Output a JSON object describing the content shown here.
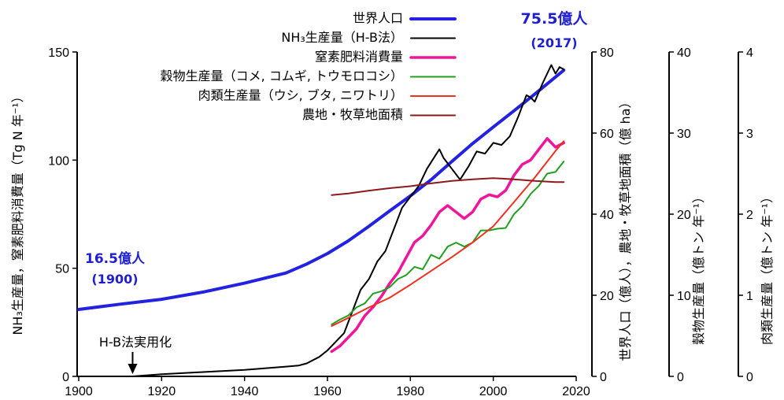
{
  "chart_data": {
    "type": "line",
    "xlabel": "",
    "x_ticks": [
      "1900",
      "1920",
      "1940",
      "1960",
      "1980",
      "2000",
      "2020"
    ],
    "xlim": [
      1900,
      2020
    ],
    "axes": [
      {
        "id": "left",
        "label": "NH₃生産量，窒素肥料消費量（Tg N 年⁻¹）",
        "range": [
          0,
          150
        ],
        "ticks": [
          "0",
          "50",
          "100",
          "150"
        ]
      },
      {
        "id": "r1",
        "label": "世界人口（億人），農地・牧草地面積（億 ha）",
        "range": [
          0,
          80
        ],
        "ticks": [
          "0",
          "20",
          "40",
          "60",
          "80"
        ]
      },
      {
        "id": "r2",
        "label": "穀物生産量（億トン 年⁻¹）",
        "range": [
          0,
          40
        ],
        "ticks": [
          "0",
          "10",
          "20",
          "30",
          "40"
        ]
      },
      {
        "id": "r3",
        "label": "肉類生産量（億トン 年⁻¹）",
        "range": [
          0,
          4
        ],
        "ticks": [
          "0",
          "1",
          "2",
          "3",
          "4"
        ]
      }
    ],
    "series": [
      {
        "name": "世界人口",
        "color": "#2222e0",
        "axis": "r1",
        "width": 4,
        "x": [
          1900,
          1910,
          1920,
          1930,
          1940,
          1950,
          1955,
          1960,
          1965,
          1970,
          1975,
          1980,
          1985,
          1990,
          1995,
          2000,
          2005,
          2010,
          2017
        ],
        "y": [
          16.5,
          17.8,
          19.0,
          20.8,
          23.0,
          25.5,
          27.7,
          30.3,
          33.4,
          37.0,
          40.8,
          44.5,
          48.5,
          53.0,
          57.4,
          61.5,
          65.5,
          69.6,
          75.5
        ]
      },
      {
        "name": "NH₃生産量（H-B法）",
        "color": "#000000",
        "axis": "left",
        "width": 2,
        "x": [
          1913,
          1920,
          1930,
          1940,
          1950,
          1953,
          1955,
          1958,
          1960,
          1962,
          1964,
          1966,
          1968,
          1970,
          1972,
          1974,
          1976,
          1978,
          1980,
          1982,
          1984,
          1986,
          1987,
          1988,
          1990,
          1992,
          1994,
          1996,
          1998,
          2000,
          2002,
          2004,
          2006,
          2008,
          2009,
          2010,
          2012,
          2014,
          2015,
          2016,
          2017
        ],
        "y": [
          0,
          1,
          2,
          3,
          4.5,
          5,
          6,
          9,
          12,
          16,
          20,
          30,
          40,
          45,
          53,
          58,
          68,
          78,
          83,
          88,
          96,
          102,
          105,
          101,
          96,
          91,
          97,
          104,
          103,
          108,
          107,
          111,
          120,
          130,
          129,
          127,
          136,
          144,
          140,
          143,
          142
        ]
      },
      {
        "name": "窒素肥料消費量",
        "color": "#f0169a",
        "axis": "left",
        "width": 3.5,
        "x": [
          1961,
          1963,
          1965,
          1967,
          1969,
          1971,
          1973,
          1975,
          1977,
          1979,
          1981,
          1983,
          1985,
          1987,
          1989,
          1991,
          1993,
          1995,
          1997,
          1999,
          2001,
          2003,
          2005,
          2007,
          2009,
          2011,
          2013,
          2015,
          2017
        ],
        "y": [
          11.5,
          14,
          18,
          22,
          28,
          32,
          37,
          43,
          48,
          55,
          62,
          65,
          70,
          76,
          79,
          76,
          73,
          76,
          82,
          84,
          83,
          86,
          93,
          98,
          100,
          105,
          110,
          106,
          108
        ]
      },
      {
        "name": "穀物生産量（コメ, コムギ, トウモロコシ）",
        "color": "#20a020",
        "axis": "r2",
        "width": 2,
        "x": [
          1961,
          1963,
          1965,
          1967,
          1969,
          1971,
          1973,
          1975,
          1977,
          1979,
          1981,
          1983,
          1985,
          1987,
          1989,
          1991,
          1993,
          1995,
          1997,
          1999,
          2001,
          2003,
          2005,
          2007,
          2009,
          2011,
          2013,
          2015,
          2017
        ],
        "y": [
          6.4,
          7.0,
          7.5,
          8.5,
          9.0,
          10.2,
          10.5,
          11.0,
          12.0,
          12.5,
          13.5,
          13.2,
          15.0,
          14.5,
          16.0,
          16.5,
          16.0,
          16.5,
          18.0,
          18.0,
          18.2,
          18.3,
          20.0,
          21.0,
          22.5,
          23.5,
          25.0,
          25.2,
          26.5
        ]
      },
      {
        "name": "肉類生産量（ウシ, ブタ, ニワトリ）",
        "color": "#f03020",
        "axis": "r3",
        "width": 2,
        "x": [
          1961,
          1965,
          1970,
          1975,
          1980,
          1985,
          1990,
          1995,
          2000,
          2005,
          2010,
          2015,
          2017
        ],
        "y": [
          0.62,
          0.72,
          0.85,
          0.97,
          1.13,
          1.3,
          1.47,
          1.65,
          1.85,
          2.15,
          2.45,
          2.78,
          2.9
        ]
      },
      {
        "name": "農地・牧草地面積",
        "color": "#8b1a1a",
        "axis": "r1",
        "width": 2,
        "x": [
          1961,
          1965,
          1970,
          1975,
          1980,
          1985,
          1990,
          1995,
          2000,
          2005,
          2010,
          2015,
          2017
        ],
        "y": [
          44.7,
          45.1,
          45.8,
          46.4,
          46.9,
          47.6,
          48.2,
          48.6,
          48.9,
          48.6,
          48.2,
          47.9,
          47.9
        ]
      }
    ],
    "annotations": [
      {
        "id": "pop1900",
        "lines": [
          "16.5億人",
          "(1900)"
        ]
      },
      {
        "id": "pop2017",
        "lines": [
          "75.5億人",
          "(2017)"
        ]
      },
      {
        "id": "hb",
        "lines": [
          "H-B法実用化"
        ]
      }
    ],
    "legend_placement": "top-center",
    "grid": false
  }
}
